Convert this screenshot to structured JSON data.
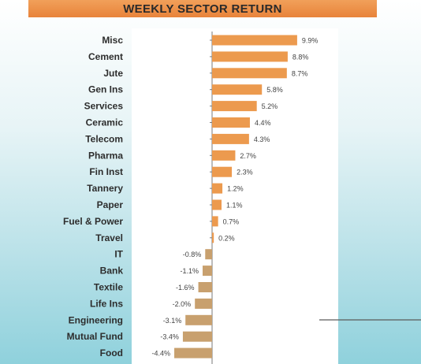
{
  "chart_data": {
    "type": "bar",
    "orientation": "horizontal",
    "title": "WEEKLY SECTOR RETURN",
    "categories": [
      "Misc",
      "Cement",
      "Jute",
      "Gen Ins",
      "Services",
      "Ceramic",
      "Telecom",
      "Pharma",
      "Fin Inst",
      "Tannery",
      "Paper",
      "Fuel & Power",
      "Travel",
      "IT",
      "Bank",
      "Textile",
      "Life Ins",
      "Engineering",
      "Mutual Fund",
      "Food"
    ],
    "values": [
      9.9,
      8.8,
      8.7,
      5.8,
      5.2,
      4.4,
      4.3,
      2.7,
      2.3,
      1.2,
      1.1,
      0.7,
      0.2,
      -0.8,
      -1.1,
      -1.6,
      -2.0,
      -3.1,
      -3.4,
      -4.4
    ],
    "value_labels": [
      "9.9%",
      "8.8%",
      "8.7%",
      "5.8%",
      "5.2%",
      "4.4%",
      "4.3%",
      "2.7%",
      "2.3%",
      "1.2%",
      "1.1%",
      "0.7%",
      "0.2%",
      "-0.8%",
      "-1.1%",
      "-1.6%",
      "-2.0%",
      "-3.1%",
      "-3.4%",
      "-4.4%"
    ],
    "xlabel": "",
    "ylabel": "",
    "grid": false,
    "legend": "none",
    "colors": {
      "positive": "#ec9a4e",
      "negative": "#c8a06e",
      "title_band": "#e8833a",
      "axis": "#7a7a7a"
    }
  }
}
